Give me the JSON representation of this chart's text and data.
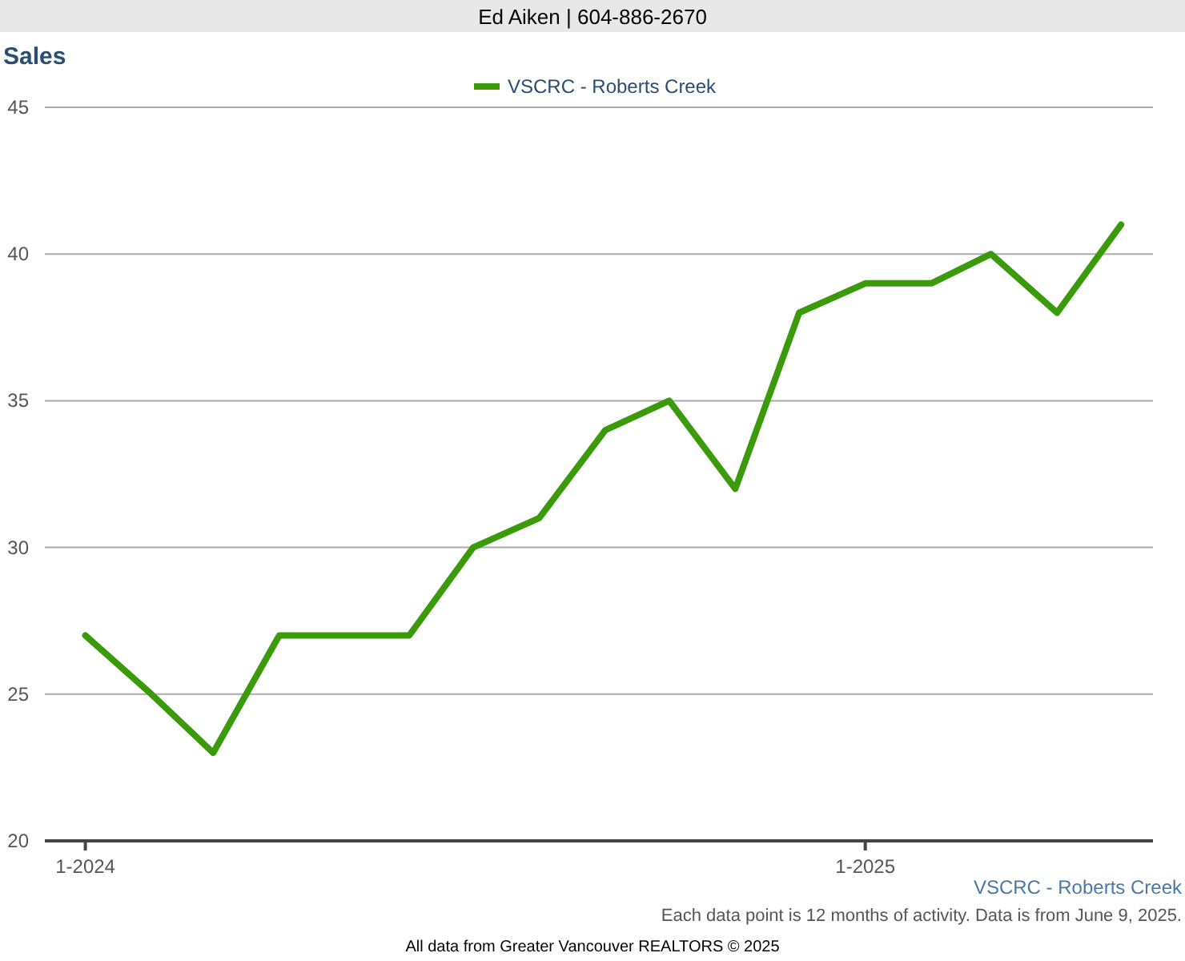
{
  "chart_data": {
    "type": "line",
    "title": "Sales",
    "annotations": [
      "Ed Aiken | 604-886-2670",
      "VSCRC - Roberts Creek",
      "Each data point is 12 months of activity. Data is from June 9, 2025.",
      "All data from Greater Vancouver REALTORS © 2025"
    ],
    "x": [
      "2024-01",
      "2024-02",
      "2024-03",
      "2024-04",
      "2024-05",
      "2024-06",
      "2024-07",
      "2024-08",
      "2024-09",
      "2024-10",
      "2024-11",
      "2024-12",
      "2025-01",
      "2025-02",
      "2025-03",
      "2025-04",
      "2025-05"
    ],
    "series": [
      {
        "name": "VSCRC - Roberts Creek",
        "color": "#3a9a0a",
        "values": [
          27,
          25,
          23,
          27,
          27,
          27,
          30,
          31,
          34,
          35,
          32,
          38,
          39,
          39,
          40,
          38,
          41
        ]
      }
    ],
    "xlim": [
      "2023-12-13",
      "2025-05-16"
    ],
    "xticks": [
      {
        "value": "2024-01",
        "label": "1-2024"
      },
      {
        "value": "2025-01",
        "label": "1-2025"
      }
    ],
    "ylim": [
      20,
      45
    ],
    "yticks": [
      20,
      25,
      30,
      35,
      40,
      45
    ],
    "grid": "y",
    "legend": "top",
    "marker": "none",
    "line_style": "solid"
  }
}
